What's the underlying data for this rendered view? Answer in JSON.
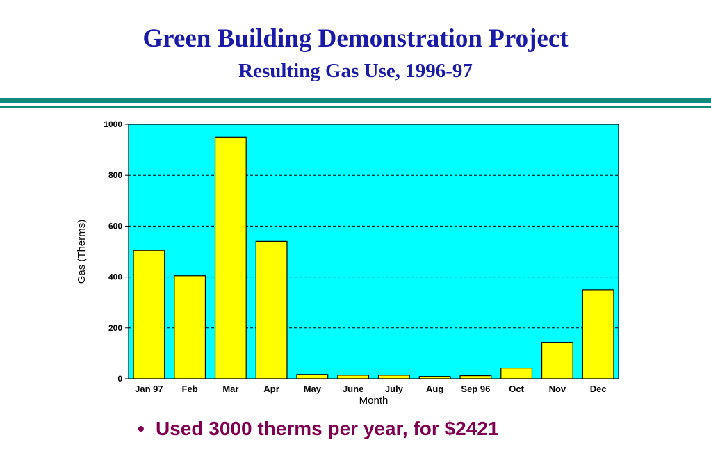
{
  "slide": {
    "title": "Green Building Demonstration Project",
    "subtitle": "Resulting Gas Use, 1996-97",
    "bullet": "Used 3000 therms per year, for $2421"
  },
  "colors": {
    "title": "#1a1aa6",
    "rule": "#138a7e",
    "plot_background": "#00ffff",
    "bar_fill": "#ffff00",
    "bar_stroke": "#000000",
    "grid": "#000000",
    "bullet": "#800050"
  },
  "chart_data": {
    "type": "bar",
    "title": "",
    "xlabel": "Month",
    "ylabel": "Gas (Therms)",
    "ylim": [
      0,
      1000
    ],
    "yticks": [
      0,
      200,
      400,
      600,
      800,
      1000
    ],
    "grid": true,
    "grid_style": "dashed horizontal",
    "legend": "none",
    "categories": [
      "Jan 97",
      "Feb",
      "Mar",
      "Apr",
      "May",
      "June",
      "July",
      "Aug",
      "Sep 96",
      "Oct",
      "Nov",
      "Dec"
    ],
    "values": [
      505,
      405,
      950,
      540,
      17,
      14,
      14,
      9,
      12,
      42,
      143,
      350
    ]
  }
}
